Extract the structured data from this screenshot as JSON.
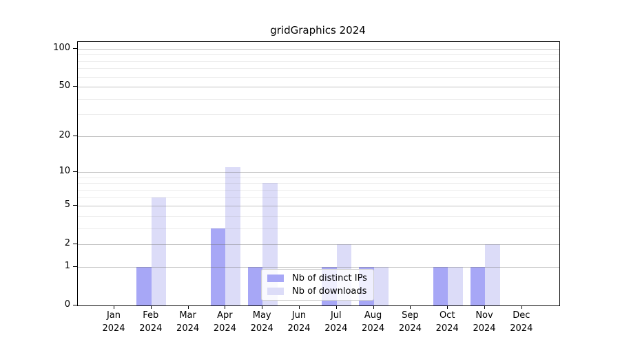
{
  "chart_data": {
    "type": "bar",
    "title": "gridGraphics 2024",
    "scale": "log1p",
    "grid": "horizontal major and minor gridlines",
    "legend_position": "inside plot, lower center",
    "x_tick_months": [
      "Jan",
      "Feb",
      "Mar",
      "Apr",
      "May",
      "Jun",
      "Jul",
      "Aug",
      "Sep",
      "Oct",
      "Nov",
      "Dec"
    ],
    "x_tick_year": "2024",
    "yticks": [
      0,
      1,
      2,
      5,
      10,
      20,
      50,
      100
    ],
    "minor_yticks": [
      3,
      4,
      6,
      7,
      8,
      9,
      30,
      40,
      60,
      70,
      80,
      90
    ],
    "ylim": [
      0,
      113
    ],
    "series": [
      {
        "name": "Nb of distinct IPs",
        "color": "#a7a7f6",
        "values": [
          0,
          1,
          0,
          3,
          1,
          0,
          1,
          1,
          0,
          1,
          1,
          0
        ]
      },
      {
        "name": "Nb of downloads",
        "color": "#dcdcf8",
        "values": [
          0,
          6,
          0,
          11,
          8,
          0,
          2,
          1,
          0,
          1,
          2,
          0
        ]
      }
    ],
    "colors": {
      "axis": "#000000",
      "grid_major": "#bdbdbd",
      "grid_minor": "#ececec",
      "legend_border": "#cfcfcf",
      "background": "#ffffff"
    }
  }
}
